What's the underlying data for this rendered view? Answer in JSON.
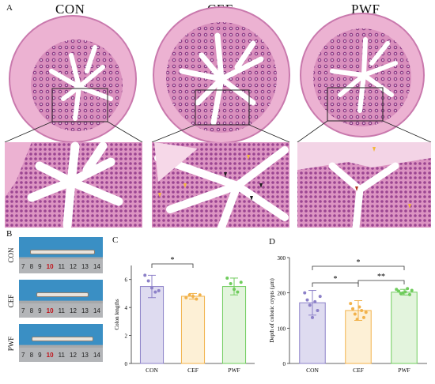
{
  "panels": {
    "a_letter": "A",
    "b_letter": "B",
    "c_letter": "C",
    "d_letter": "D"
  },
  "histology": {
    "groups": [
      "CON",
      "CEF",
      "PWF"
    ]
  },
  "photos": {
    "labels": [
      "CON",
      "CEF",
      "PWF"
    ],
    "ruler_ticks": [
      "7",
      "8",
      "9",
      "10",
      "11",
      "12",
      "13",
      "14"
    ]
  },
  "colors": {
    "con": "#8c80c8",
    "cef": "#f2b24b",
    "pwf": "#6fcc5c",
    "con_fill": "#dedbf0",
    "cef_fill": "#fdf0d6",
    "pwf_fill": "#e3f4dd",
    "tissue": "#e7a3c8",
    "tissue_dark": "#9a3f8a"
  },
  "chart_data": [
    {
      "type": "bar",
      "panel": "C",
      "categories": [
        "CON",
        "CEF",
        "PWF"
      ],
      "values": [
        5.5,
        4.8,
        5.5
      ],
      "errors": [
        0.8,
        0.2,
        0.6
      ],
      "points": [
        [
          6.3,
          5.9,
          5.4,
          5.1,
          5.2
        ],
        [
          4.7,
          4.9,
          4.8,
          4.6,
          4.9
        ],
        [
          6.1,
          5.7,
          5.3,
          5.1,
          5.8
        ]
      ],
      "ylabel": "Colon lengths",
      "ylim": [
        0,
        7
      ],
      "yticks": [
        "0",
        "2",
        "4",
        "6"
      ],
      "significance": [
        {
          "from": 0,
          "to": 1,
          "label": "*"
        }
      ]
    },
    {
      "type": "bar",
      "panel": "D",
      "categories": [
        "CON",
        "CEF",
        "PWF"
      ],
      "values": [
        172,
        150,
        202
      ],
      "errors": [
        35,
        28,
        8
      ],
      "points": [
        [
          200,
          180,
          165,
          130,
          175,
          150,
          190
        ],
        [
          170,
          155,
          140,
          125,
          160,
          150,
          130,
          145
        ],
        [
          210,
          205,
          198,
          200,
          203,
          212,
          195,
          207
        ]
      ],
      "ylabel": "Depth of colonic crypts (μm)",
      "ylim": [
        0,
        300
      ],
      "yticks": [
        "0",
        "100",
        "200",
        "300"
      ],
      "significance": [
        {
          "from": 0,
          "to": 2,
          "label": "*"
        },
        {
          "from": 0,
          "to": 1,
          "label": "*"
        },
        {
          "from": 1,
          "to": 2,
          "label": "**"
        }
      ]
    }
  ]
}
